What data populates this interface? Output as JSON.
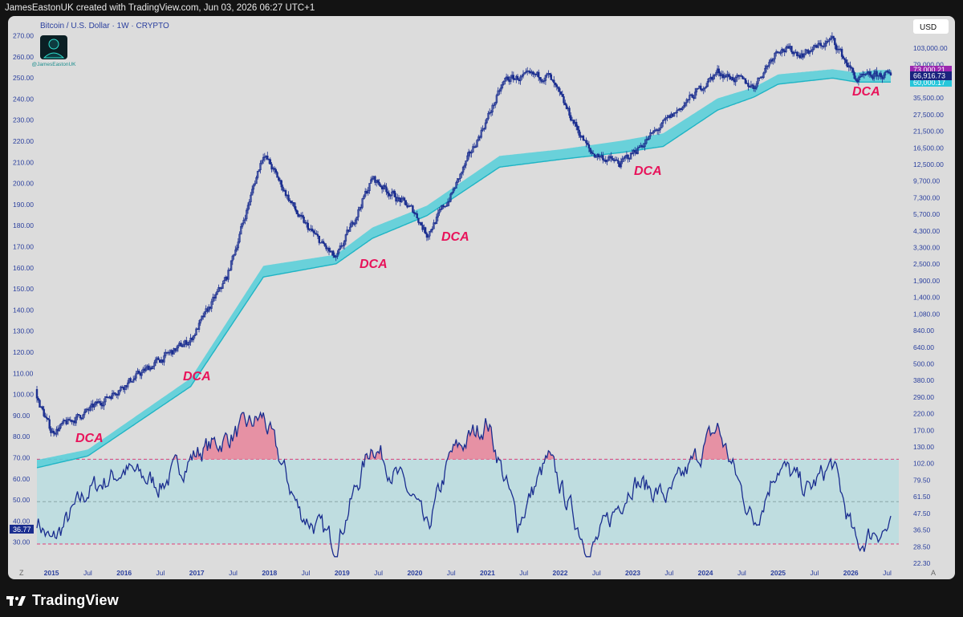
{
  "header": {
    "text": "JamesEastonUK created with TradingView.com, Jun 03, 2026 06:27 UTC+1"
  },
  "footer": {
    "brand": "TradingView"
  },
  "chart": {
    "title": "Bitcoin / U.S. Dollar · 1W · CRYPTO",
    "watermark": "@JamesEastonUK",
    "currency": "USD",
    "left_axis_labels": [
      "270.00",
      "260.00",
      "250.00",
      "240.00",
      "230.00",
      "220.00",
      "210.00",
      "200.00",
      "190.00",
      "180.00",
      "170.00",
      "160.00",
      "150.00",
      "140.00",
      "130.00",
      "120.00",
      "110.00",
      "100.00",
      "90.00",
      "80.00",
      "70.00",
      "60.00",
      "50.00",
      "40.00",
      "30.00"
    ],
    "rsi_current": "36.77",
    "right_axis_labels": [
      "103,000.00",
      "79,000.00",
      "47,500.00",
      "35,500.00",
      "27,500.00",
      "21,500.00",
      "16,500.00",
      "12,500.00",
      "9,700.00",
      "7,300.00",
      "5,700.00",
      "4,300.00",
      "3,300.00",
      "2,500.00",
      "1,900.00",
      "1,400.00",
      "1,080.00",
      "840.00",
      "640.00",
      "500.00",
      "380.00",
      "290.00",
      "220.00",
      "170.00",
      "130.00",
      "102.00",
      "79.50",
      "61.50",
      "47.50",
      "36.50",
      "28.50",
      "22.30"
    ],
    "price_tags": {
      "upper": "73,000.21",
      "current": "66,916.73",
      "lower": "60,000.17",
      "upper_color": "#9c27b0",
      "current_color": "#1a237e",
      "lower_color": "#26c6da"
    },
    "x_axis_labels": [
      "2015",
      "Jul",
      "2016",
      "Jul",
      "2017",
      "Jul",
      "2018",
      "Jul",
      "2019",
      "Jul",
      "2020",
      "Jul",
      "2021",
      "Jul",
      "2022",
      "Jul",
      "2023",
      "Jul",
      "2024",
      "Jul",
      "2025",
      "Jul",
      "2026",
      "Jul"
    ],
    "annotations": [
      "DCA",
      "DCA",
      "DCA",
      "DCA",
      "DCA",
      "DCA"
    ],
    "corner_labels": {
      "left": "Z",
      "right": "A"
    },
    "colors": {
      "candles": "#1a2d8f",
      "band_fill": "#5ccfd9",
      "band_edge": "#1fb4c4",
      "rsi_line": "#1a2d8f",
      "rsi_zone": "#bfdde0",
      "overbought": "#e8849a",
      "guide": "#e03e78",
      "annotation": "#e8135a",
      "axis_text": "#2a3f9e"
    }
  },
  "chart_data": {
    "type": "line",
    "title": "Bitcoin / U.S. Dollar · 1W · CRYPTO",
    "xlabel": "",
    "ylabel": "",
    "scale": "log",
    "ylim": [
      22.3,
      140000
    ],
    "grid": false,
    "series": [
      {
        "x": [
          "2014-10",
          "2015-01",
          "2015-07",
          "2016-01",
          "2016-07",
          "2016-12",
          "2017-06",
          "2017-12",
          "2018-06",
          "2018-12",
          "2019-06",
          "2020-01",
          "2020-03",
          "2020-07",
          "2021-04",
          "2021-11",
          "2022-06",
          "2022-11",
          "2023-06",
          "2024-03",
          "2024-09",
          "2025-01",
          "2025-05",
          "2025-10",
          "2026-02",
          "2026-05"
        ],
        "values": [
          400,
          200,
          280,
          430,
          650,
          900,
          2500,
          19000,
          6500,
          3300,
          12500,
          7200,
          5000,
          9500,
          63000,
          67000,
          19000,
          15800,
          30000,
          71000,
          56000,
          105000,
          95000,
          120000,
          62000,
          66916
        ]
      },
      {
        "x": [
          "2014-10",
          "2015-07",
          "2016-12",
          "2017-12",
          "2018-12",
          "2019-06",
          "2020-03",
          "2021-03",
          "2022-01",
          "2022-11",
          "2023-06",
          "2024-03",
          "2024-09",
          "2025-01",
          "2025-10",
          "2026-02",
          "2026-05"
        ],
        "values": [
          125,
          150,
          480,
          3000,
          3600,
          5600,
          8000,
          18000,
          20000,
          23000,
          26000,
          46000,
          55000,
          68000,
          74000,
          70000,
          73000
        ]
      },
      {
        "x": [
          "2014-10",
          "2015-07",
          "2016-12",
          "2017-12",
          "2018-12",
          "2019-06",
          "2020-03",
          "2021-03",
          "2022-01",
          "2022-11",
          "2023-06",
          "2024-03",
          "2024-09",
          "2025-01",
          "2025-10",
          "2026-02",
          "2026-05"
        ],
        "values": [
          110,
          135,
          420,
          2500,
          3100,
          4700,
          6800,
          15000,
          17000,
          19000,
          21000,
          38000,
          47000,
          58000,
          64000,
          60000,
          60000
        ]
      },
      {
        "x": [
          "2014-10",
          "2015-01",
          "2015-07",
          "2016-01",
          "2016-07",
          "2017-01",
          "2017-06",
          "2017-12",
          "2018-06",
          "2018-12",
          "2019-06",
          "2020-01",
          "2020-03",
          "2020-07",
          "2021-01",
          "2021-06",
          "2021-11",
          "2022-06",
          "2023-01",
          "2023-07",
          "2024-03",
          "2024-09",
          "2025-01",
          "2025-06",
          "2025-10",
          "2026-02",
          "2026-05"
        ],
        "values": [
          45,
          30,
          55,
          65,
          58,
          73,
          80,
          90,
          45,
          30,
          78,
          50,
          35,
          72,
          88,
          40,
          70,
          26,
          60,
          52,
          85,
          40,
          68,
          55,
          68,
          28,
          36.77
        ]
      }
    ]
  }
}
